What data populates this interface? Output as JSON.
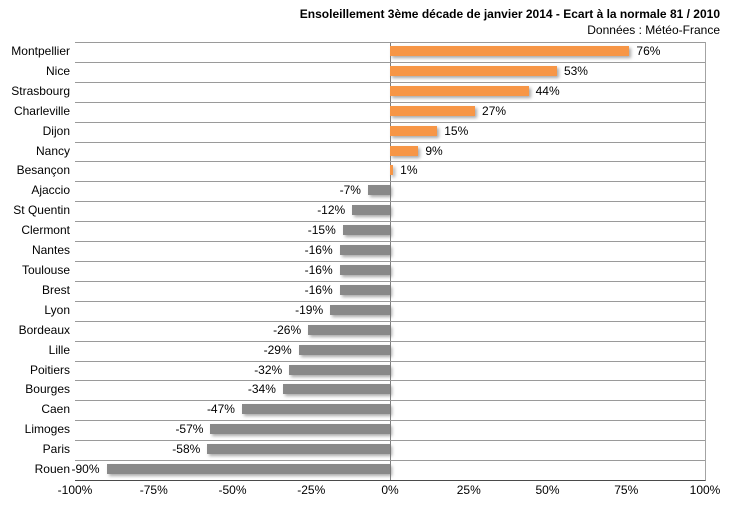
{
  "header": {
    "title": "Ensoleillement 3ème décade de janvier 2014 - Ecart à la normale 81 / 2010",
    "subtitle": "Données : Météo-France"
  },
  "chart_data": {
    "type": "bar",
    "orientation": "horizontal",
    "title": "Ensoleillement 3ème décade de janvier 2014 - Ecart à la normale 81 / 2010",
    "subtitle": "Données : Météo-France",
    "categories": [
      "Montpellier",
      "Nice",
      "Strasbourg",
      "Charleville",
      "Dijon",
      "Nancy",
      "Besançon",
      "Ajaccio",
      "St Quentin",
      "Clermont",
      "Nantes",
      "Toulouse",
      "Brest",
      "Lyon",
      "Bordeaux",
      "Lille",
      "Poitiers",
      "Bourges",
      "Caen",
      "Limoges",
      "Paris",
      "Rouen"
    ],
    "values": [
      76,
      53,
      44,
      27,
      15,
      9,
      1,
      -7,
      -12,
      -15,
      -16,
      -16,
      -16,
      -19,
      -26,
      -29,
      -32,
      -34,
      -47,
      -57,
      -58,
      -90
    ],
    "value_labels": [
      "76%",
      "53%",
      "44%",
      "27%",
      "15%",
      "9%",
      "1%",
      "-7%",
      "-12%",
      "-15%",
      "-16%",
      "-16%",
      "-16%",
      "-19%",
      "-26%",
      "-29%",
      "-32%",
      "-34%",
      "-47%",
      "-57%",
      "-58%",
      "-90%"
    ],
    "xlabel": "",
    "ylabel": "",
    "xlim": [
      -100,
      100
    ],
    "x_tick_labels": [
      "-100%",
      "-75%",
      "-50%",
      "-25%",
      "0%",
      "25%",
      "50%",
      "75%",
      "100%"
    ],
    "x_tick_values": [
      -100,
      -75,
      -50,
      -25,
      0,
      25,
      50,
      75,
      100
    ],
    "grid": "horizontal category separators, zero line, right border",
    "legend": "none",
    "colors": {
      "positive_bar": "#F79646",
      "negative_bar": "#898989",
      "separator_line": "#9a9a9a",
      "zero_line": "#7f7f7f",
      "axis_line": "#4a4a4a",
      "text": "#000000"
    }
  }
}
